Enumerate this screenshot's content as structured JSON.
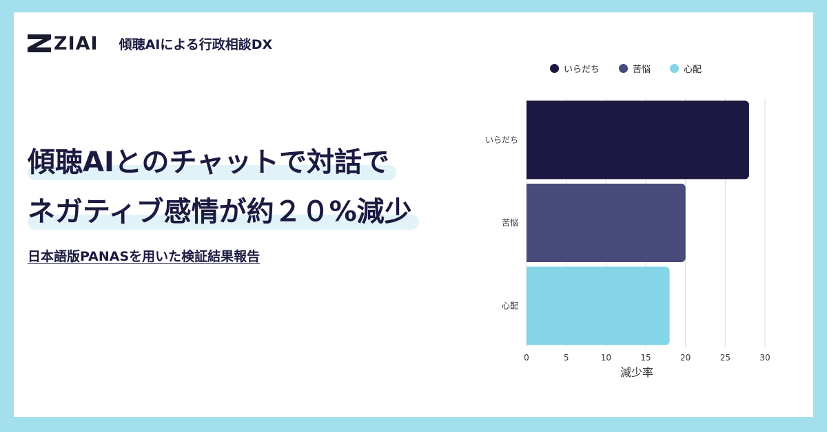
{
  "brand": {
    "logo_text": "ZIAI",
    "tagline": "傾聴AIによる行政相談DX"
  },
  "headline": {
    "line1": "傾聴AIとのチャットで対話で",
    "line2": "ネガティブ感情が約２０%減少"
  },
  "subheadline": "日本語版PANASを用いた検証結果報告",
  "colors": {
    "background": "#a3dfec",
    "accent_dark": "#1c1a40",
    "highlight": "#e1f3f9",
    "bar1": "#1b1841",
    "bar2": "#474a7a",
    "bar3": "#84d5e8"
  },
  "chart_data": {
    "type": "bar",
    "orientation": "horizontal",
    "categories": [
      "いらだち",
      "苦悩",
      "心配"
    ],
    "values": [
      28,
      20,
      18
    ],
    "legend": [
      "いらだち",
      "苦悩",
      "心配"
    ],
    "legend_position": "top",
    "xlabel": "減少率",
    "ylabel": "",
    "xlim": [
      0,
      30
    ],
    "ticks": [
      "0",
      "5",
      "10",
      "15",
      "20",
      "25",
      "30"
    ],
    "grid": true
  }
}
